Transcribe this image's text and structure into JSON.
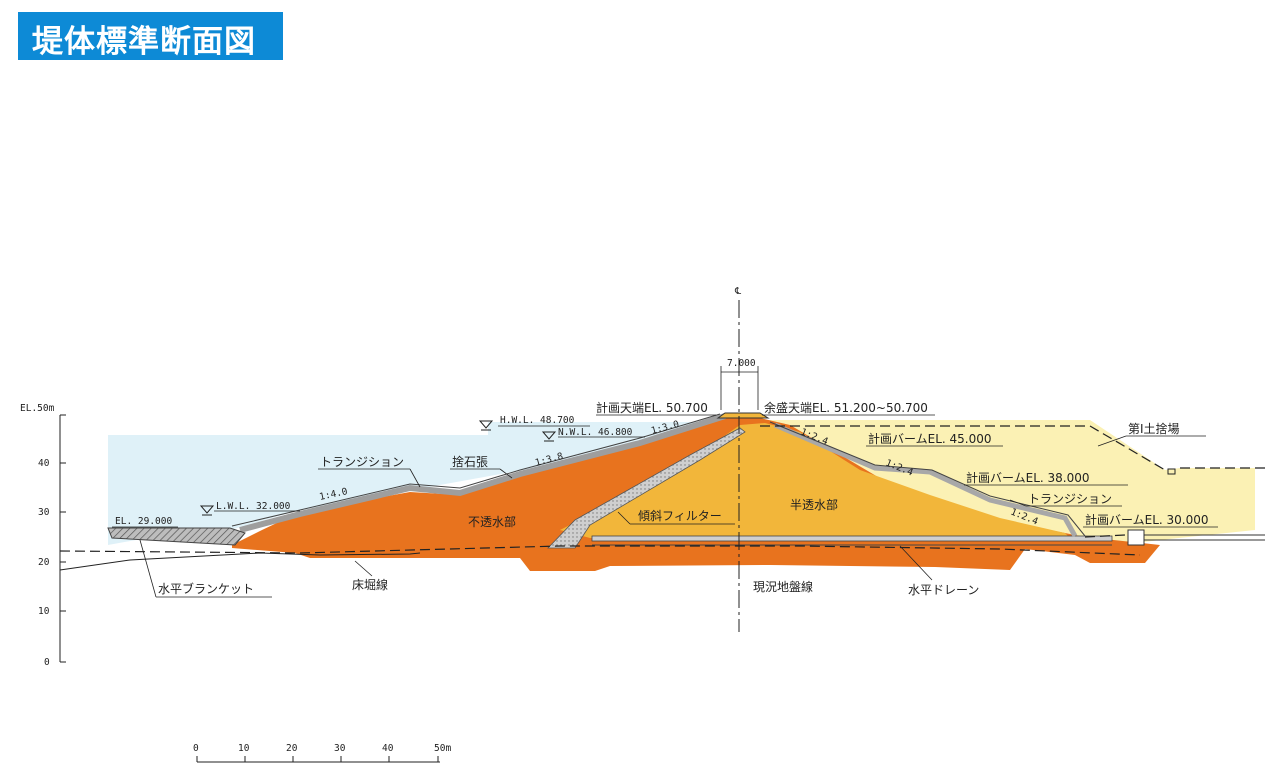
{
  "title": "堤体標準断面図",
  "axis": {
    "top_label": "EL.50m",
    "ticks": [
      "40",
      "30",
      "20",
      "10",
      "0"
    ]
  },
  "scale_bar": {
    "ticks": [
      "0",
      "10",
      "20",
      "30",
      "40",
      "50m"
    ]
  },
  "centerline": {
    "symbol": "℄",
    "crest_width": "7.000"
  },
  "labels": {
    "hwl": "H.W.L. 48.700",
    "nwl": "N.W.L. 46.800",
    "lwl": "L.W.L. 32.000",
    "el_toe": "EL. 29.000",
    "crest_plan": "計画天端EL. 50.700",
    "crest_extra": "余盛天端EL. 51.200~50.700",
    "berm45": "計画バームEL. 45.000",
    "berm38": "計画バームEL. 38.000",
    "berm30": "計画バームEL. 30.000",
    "transition_up": "トランジション",
    "transition_down": "トランジション",
    "riprap": "捨石張",
    "impervious": "不透水部",
    "semi_pervious": "半透水部",
    "filter": "傾斜フィルター",
    "blanket": "水平ブランケット",
    "excavation": "床堀線",
    "existing_ground": "現況地盤線",
    "drain": "水平ドレーン",
    "spoil": "第Ⅰ土捨場",
    "slope_30": "1:3.0",
    "slope_38": "1:3.8",
    "slope_40": "1:4.0",
    "slope_24a": "1:2.4",
    "slope_24b": "1:2.4",
    "slope_24c": "1:2.4"
  },
  "colors": {
    "title_bg": "#0d8ad6",
    "reservoir": "#dff1f8",
    "impervious": "#e8731e",
    "semi_pervious": "#f2b63a",
    "spoil": "#fbf1b4",
    "transition": "#c3c3c3"
  }
}
